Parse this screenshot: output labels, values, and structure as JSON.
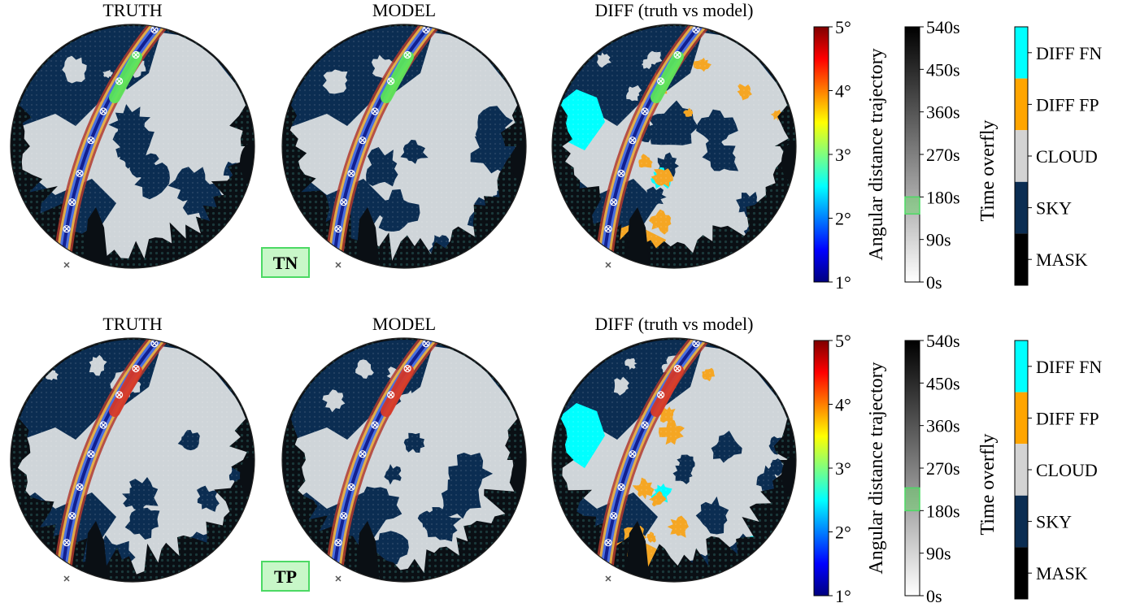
{
  "chart_data": {
    "type": "heatmap",
    "rows": [
      {
        "panels": [
          {
            "title": "TRUTH",
            "kind": "classification"
          },
          {
            "title": "MODEL",
            "kind": "classification"
          },
          {
            "title": "DIFF (truth vs model)",
            "kind": "diff"
          }
        ],
        "badge": "TN",
        "trajectory_highlight_degrees": 3,
        "time_overfly_highlight_s": [
          144,
          180
        ]
      },
      {
        "panels": [
          {
            "title": "TRUTH",
            "kind": "classification"
          },
          {
            "title": "MODEL",
            "kind": "classification"
          },
          {
            "title": "DIFF (truth vs model)",
            "kind": "diff"
          }
        ],
        "badge": "TP",
        "trajectory_highlight_degrees": 5,
        "time_overfly_highlight_s": [
          180,
          228
        ]
      }
    ],
    "colorbars": {
      "angular": {
        "label": "Angular distance trajectory",
        "ticks": [
          "1°",
          "2°",
          "3°",
          "4°",
          "5°"
        ],
        "range": [
          1,
          5
        ],
        "colors": [
          "#00007f",
          "#0000ff",
          "#007fff",
          "#00ffff",
          "#7fff7f",
          "#ffff00",
          "#ff7f00",
          "#ff0000",
          "#7f0000"
        ]
      },
      "time": {
        "label": "Time overfly",
        "ticks": [
          "0s",
          "90s",
          "180s",
          "270s",
          "360s",
          "450s",
          "540s"
        ],
        "range": [
          0,
          540
        ],
        "colors": [
          "#ffffff",
          "#000000"
        ]
      },
      "classes": {
        "entries": [
          {
            "label": "DIFF FN",
            "color": "#00ffff"
          },
          {
            "label": "DIFF FP",
            "color": "#ffa500"
          },
          {
            "label": "CLOUD",
            "color": "#d3d3d3"
          },
          {
            "label": "SKY",
            "color": "#0b2d52"
          },
          {
            "label": "MASK",
            "color": "#000000"
          }
        ]
      }
    },
    "colors": {
      "sky": "#0b2d52",
      "cloud": "#cfd5d9",
      "mask": "#0a0f14",
      "fn": "#00ffff",
      "fp": "#f5a623",
      "badge_fill": "#c8f7c8",
      "badge_stroke": "#4cd964"
    }
  }
}
